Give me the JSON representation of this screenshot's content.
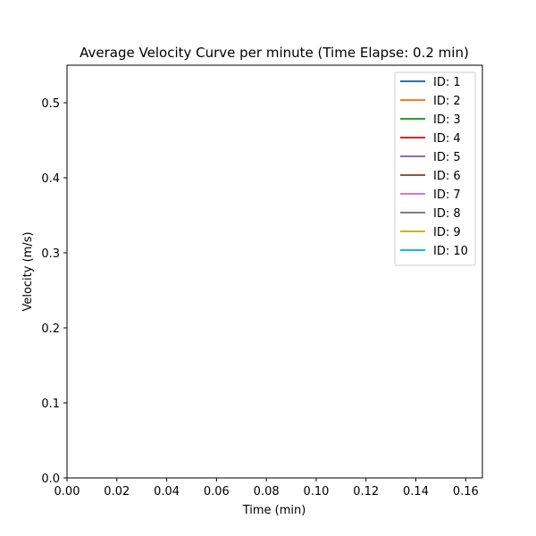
{
  "chart_data": {
    "type": "line",
    "title": "Average Velocity Curve per minute (Time Elapse: 0.2 min)",
    "xlabel": "Time (min)",
    "ylabel": "Velocity (m/s)",
    "xlim": [
      0.0,
      0.1667
    ],
    "ylim": [
      0.0,
      0.55
    ],
    "xticks": [
      "0.00",
      "0.02",
      "0.04",
      "0.06",
      "0.08",
      "0.10",
      "0.12",
      "0.14",
      "0.16"
    ],
    "yticks": [
      "0.0",
      "0.1",
      "0.2",
      "0.3",
      "0.4",
      "0.5"
    ],
    "grid": false,
    "legend_position": "top-right",
    "series": [
      {
        "name": "ID: 1",
        "color": "#1f77b4",
        "x": [],
        "y": []
      },
      {
        "name": "ID: 2",
        "color": "#ff7f0e",
        "x": [],
        "y": []
      },
      {
        "name": "ID: 3",
        "color": "#2ca02c",
        "x": [],
        "y": []
      },
      {
        "name": "ID: 4",
        "color": "#d62728",
        "x": [],
        "y": []
      },
      {
        "name": "ID: 5",
        "color": "#9467bd",
        "x": [],
        "y": []
      },
      {
        "name": "ID: 6",
        "color": "#8c564b",
        "x": [],
        "y": []
      },
      {
        "name": "ID: 7",
        "color": "#e377c2",
        "x": [],
        "y": []
      },
      {
        "name": "ID: 8",
        "color": "#7f7f7f",
        "x": [],
        "y": []
      },
      {
        "name": "ID: 9",
        "color": "#bcbd22",
        "x": [],
        "y": []
      },
      {
        "name": "ID: 10",
        "color": "#17becf",
        "x": [],
        "y": []
      }
    ]
  }
}
